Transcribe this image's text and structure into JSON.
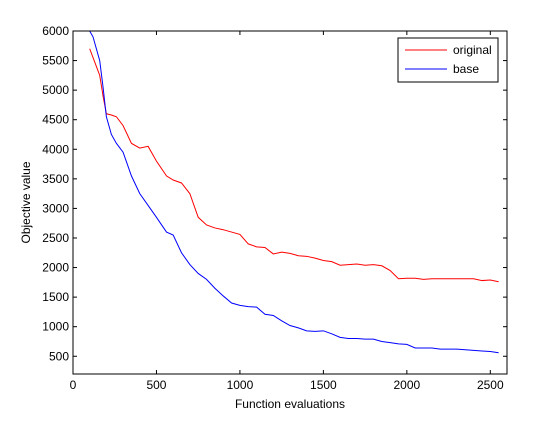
{
  "chart_data": {
    "type": "line",
    "title": "",
    "xlabel": "Function evaluations",
    "ylabel": "Objective value",
    "xlim": [
      0,
      2600
    ],
    "ylim": [
      200,
      6000
    ],
    "xticks": [
      0,
      500,
      1000,
      1500,
      2000,
      2500
    ],
    "yticks": [
      500,
      1000,
      1500,
      2000,
      2500,
      3000,
      3500,
      4000,
      4500,
      5000,
      5500,
      6000
    ],
    "grid": false,
    "legend_position": "top-right",
    "series": [
      {
        "name": "original",
        "color": "#ff0000",
        "x": [
          100,
          120,
          140,
          160,
          180,
          200,
          230,
          260,
          300,
          350,
          400,
          450,
          500,
          560,
          600,
          650,
          700,
          750,
          800,
          850,
          900,
          950,
          1000,
          1050,
          1100,
          1150,
          1200,
          1250,
          1300,
          1350,
          1400,
          1450,
          1500,
          1550,
          1600,
          1650,
          1700,
          1750,
          1800,
          1850,
          1900,
          1950,
          2000,
          2050,
          2100,
          2150,
          2200,
          2250,
          2300,
          2350,
          2400,
          2450,
          2500,
          2550
        ],
        "y": [
          5700,
          5550,
          5400,
          5250,
          4900,
          4600,
          4580,
          4550,
          4400,
          4100,
          4020,
          4050,
          3800,
          3550,
          3480,
          3430,
          3250,
          2850,
          2720,
          2670,
          2640,
          2600,
          2560,
          2400,
          2350,
          2340,
          2230,
          2260,
          2240,
          2200,
          2190,
          2160,
          2120,
          2100,
          2040,
          2050,
          2060,
          2040,
          2050,
          2030,
          1950,
          1810,
          1820,
          1820,
          1800,
          1810,
          1810,
          1810,
          1810,
          1810,
          1810,
          1780,
          1790,
          1760
        ]
      },
      {
        "name": "base",
        "color": "#0000ff",
        "x": [
          100,
          120,
          140,
          160,
          180,
          200,
          230,
          260,
          300,
          350,
          400,
          450,
          500,
          560,
          600,
          650,
          700,
          750,
          800,
          850,
          900,
          950,
          1000,
          1050,
          1100,
          1150,
          1200,
          1250,
          1300,
          1350,
          1400,
          1450,
          1500,
          1550,
          1600,
          1650,
          1700,
          1750,
          1800,
          1850,
          1900,
          1950,
          2000,
          2050,
          2100,
          2150,
          2200,
          2250,
          2300,
          2350,
          2400,
          2450,
          2500,
          2550
        ],
        "y": [
          6000,
          5900,
          5700,
          5500,
          5050,
          4550,
          4250,
          4100,
          3950,
          3550,
          3250,
          3050,
          2850,
          2600,
          2550,
          2250,
          2050,
          1900,
          1800,
          1650,
          1520,
          1400,
          1360,
          1340,
          1330,
          1210,
          1190,
          1100,
          1020,
          980,
          930,
          920,
          930,
          880,
          820,
          800,
          800,
          790,
          790,
          750,
          730,
          710,
          700,
          640,
          640,
          640,
          620,
          620,
          620,
          610,
          600,
          590,
          580,
          560
        ]
      }
    ]
  }
}
